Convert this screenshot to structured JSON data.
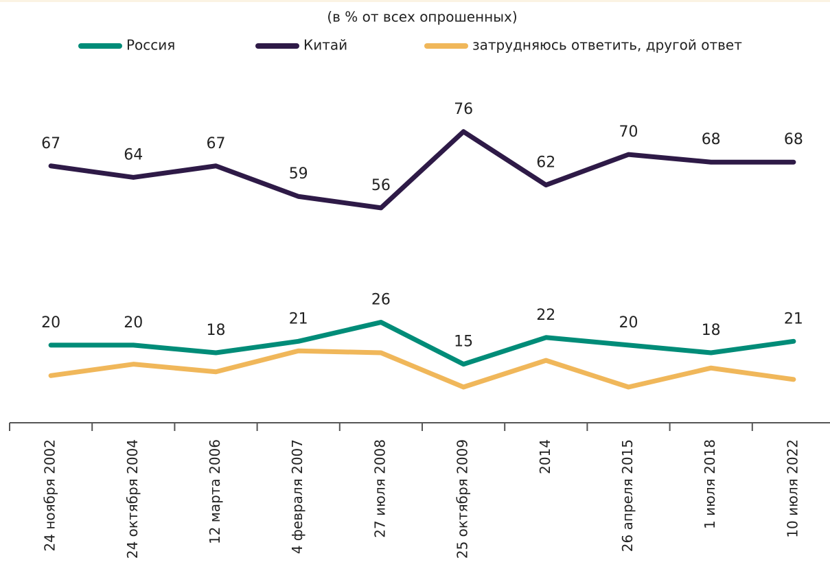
{
  "chart_data": {
    "type": "line",
    "subtitle": "(в % от всех опрошенных)",
    "categories": [
      "24 ноября 2002",
      "24 октября 2004",
      "12 марта 2006",
      "4 февраля 2007",
      "27 июля 2008",
      "25 октября 2009",
      "2014",
      "26 апреля 2015",
      "1 июля 2018",
      "10 июля 2022"
    ],
    "series": [
      {
        "name": "Россия",
        "color": "#008c78",
        "values": [
          20,
          20,
          18,
          21,
          26,
          15,
          22,
          20,
          18,
          21
        ]
      },
      {
        "name": "Китай",
        "color": "#2e1a47",
        "values": [
          67,
          64,
          67,
          59,
          56,
          76,
          62,
          70,
          68,
          68
        ]
      },
      {
        "name": "затрудняюсь ответить, другой ответ",
        "color": "#f0b75a",
        "values": [
          12,
          15,
          13,
          18.5,
          18,
          9,
          16,
          9,
          14,
          11
        ]
      }
    ],
    "labeled_series": [
      0,
      1
    ],
    "ylim": [
      0,
      90
    ]
  }
}
